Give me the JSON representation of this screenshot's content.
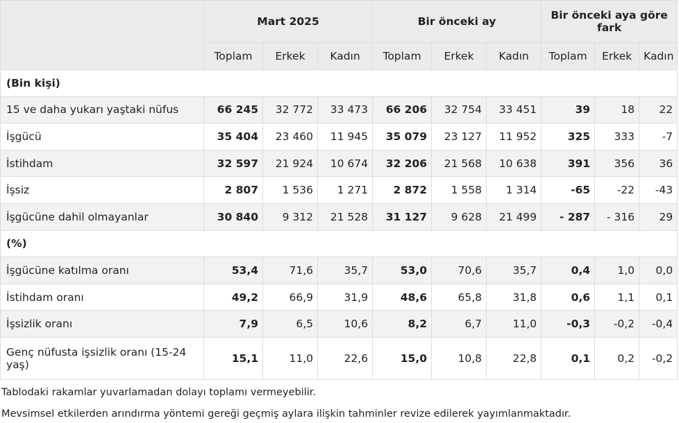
{
  "header": {
    "groups": [
      "Mart 2025",
      "Bir önceki ay",
      "Bir önceki aya göre fark"
    ],
    "subcols": [
      "Toplam",
      "Erkek",
      "Kadın"
    ]
  },
  "sections": [
    {
      "title": "(Bin kişi)",
      "rows": [
        {
          "label": "15 ve daha yukarı yaştaki nüfus",
          "values": [
            "66 245",
            "32 772",
            "33 473",
            "66 206",
            "32 754",
            "33 451",
            "39",
            "18",
            "22"
          ]
        },
        {
          "label": "İşgücü",
          "values": [
            "35 404",
            "23 460",
            "11 945",
            "35 079",
            "23 127",
            "11 952",
            "325",
            "333",
            "-7"
          ]
        },
        {
          "label": "İstihdam",
          "values": [
            "32 597",
            "21 924",
            "10 674",
            "32 206",
            "21 568",
            "10 638",
            "391",
            "356",
            "36"
          ]
        },
        {
          "label": "İşsiz",
          "values": [
            "2 807",
            "1 536",
            "1 271",
            "2 872",
            "1 558",
            "1 314",
            "-65",
            "-22",
            "-43"
          ]
        },
        {
          "label": "İşgücüne dahil olmayanlar",
          "values": [
            "30 840",
            "9 312",
            "21 528",
            "31 127",
            "9 628",
            "21 499",
            "- 287",
            "- 316",
            "29"
          ]
        }
      ]
    },
    {
      "title": "(%)",
      "rows": [
        {
          "label": "İşgücüne katılma oranı",
          "values": [
            "53,4",
            "71,6",
            "35,7",
            "53,0",
            "70,6",
            "35,7",
            "0,4",
            "1,0",
            "0,0"
          ]
        },
        {
          "label": "İstihdam oranı",
          "values": [
            "49,2",
            "66,9",
            "31,9",
            "48,6",
            "65,8",
            "31,8",
            "0,6",
            "1,1",
            "0,1"
          ]
        },
        {
          "label": "İşsizlik oranı",
          "values": [
            "7,9",
            "6,5",
            "10,6",
            "8,2",
            "6,7",
            "11,0",
            "-0,3",
            "-0,2",
            "-0,4"
          ]
        },
        {
          "label": "Genç nüfusta işsizlik oranı (15-24 yaş)",
          "values": [
            "15,1",
            "11,0",
            "22,6",
            "15,0",
            "10,8",
            "22,8",
            "0,1",
            "0,2",
            "-0,2"
          ]
        }
      ]
    }
  ],
  "notes": [
    "Tablodaki rakamlar yuvarlamadan dolayı toplamı vermeyebilir.",
    "Mevsimsel etkilerden arındırma yöntemi gereği geçmiş aylara ilişkin tahminler revize edilerek yayımlanmaktadır."
  ]
}
